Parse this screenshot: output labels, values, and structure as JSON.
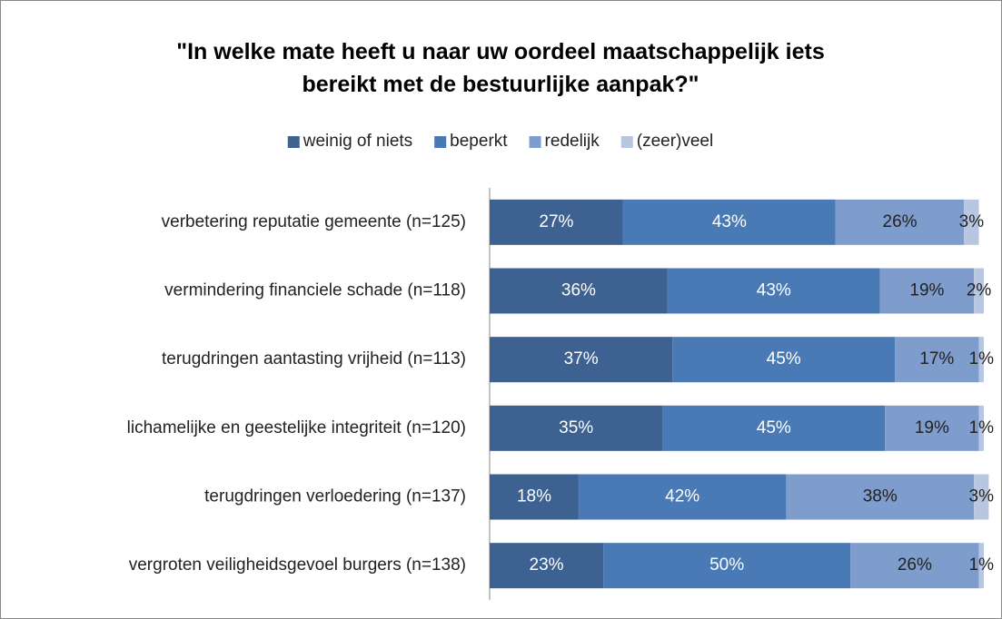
{
  "chart_data": {
    "type": "stacked-bar-horizontal",
    "title": "\"In welke mate heeft u naar uw oordeel maatschappelijk iets bereikt met de bestuurlijke aanpak?\"",
    "categories": [
      "verbetering reputatie gemeente (n=125)",
      "vermindering financiele schade (n=118)",
      "terugdringen aantasting vrijheid (n=113)",
      "lichamelijke en geestelijke integriteit (n=120)",
      "terugdringen verloedering (n=137)",
      "vergroten veiligheidsgevoel burgers (n=138)"
    ],
    "series": [
      {
        "name": "weinig of niets",
        "color": "#3d6191",
        "label_color": "#ffffff",
        "values": [
          27,
          36,
          37,
          35,
          18,
          23
        ],
        "value_labels": [
          "27%",
          "36%",
          "37%",
          "35%",
          "18%",
          "23%"
        ]
      },
      {
        "name": "beperkt",
        "color": "#4a7ab6",
        "label_color": "#ffffff",
        "values": [
          43,
          43,
          45,
          45,
          42,
          50
        ],
        "value_labels": [
          "43%",
          "43%",
          "45%",
          "45%",
          "42%",
          "50%"
        ]
      },
      {
        "name": "redelijk",
        "color": "#7e9ccc",
        "label_color": "#222222",
        "values": [
          26,
          19,
          17,
          19,
          38,
          26
        ],
        "value_labels": [
          "26%",
          "19%",
          "17%",
          "19%",
          "38%",
          "26%"
        ]
      },
      {
        "name": "(zeer)veel",
        "color": "#b8c6e2",
        "label_color": "#222222",
        "values": [
          3,
          2,
          1,
          1,
          3,
          1
        ],
        "value_labels": [
          "3%",
          "2%",
          "1%",
          "1%",
          "3%",
          "1%"
        ]
      }
    ],
    "xlim": [
      0,
      100
    ],
    "legend": "top"
  }
}
